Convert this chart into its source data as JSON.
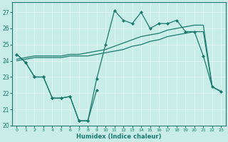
{
  "xlabel": "Humidex (Indice chaleur)",
  "bg_color": "#c8ece8",
  "grid_color": "#e8f8f5",
  "line_color": "#1a7a6e",
  "xlim": [
    -0.5,
    23.5
  ],
  "ylim": [
    20,
    27.6
  ],
  "yticks": [
    20,
    21,
    22,
    23,
    24,
    25,
    26,
    27
  ],
  "xticks": [
    0,
    1,
    2,
    3,
    4,
    5,
    6,
    7,
    8,
    9,
    10,
    11,
    12,
    13,
    14,
    15,
    16,
    17,
    18,
    19,
    20,
    21,
    22,
    23
  ],
  "line_jagged_x": [
    0,
    1,
    2,
    3,
    4,
    5,
    6,
    7,
    8,
    9,
    10,
    11,
    12,
    13,
    14,
    15,
    16,
    17,
    18,
    19,
    20,
    21,
    22,
    23
  ],
  "line_jagged_y": [
    24.4,
    23.9,
    23.0,
    23.0,
    21.7,
    21.7,
    21.8,
    20.3,
    20.3,
    22.9,
    25.0,
    27.1,
    26.5,
    26.3,
    27.0,
    26.0,
    26.3,
    26.3,
    26.5,
    25.8,
    25.8,
    24.3,
    22.4,
    22.1
  ],
  "line_lower_x": [
    0,
    1,
    2,
    3,
    4,
    5,
    6,
    7,
    8,
    9,
    10,
    11,
    12,
    13,
    14,
    15,
    16,
    17,
    18,
    19,
    20,
    21,
    22,
    23
  ],
  "line_lower_y": [
    24.4,
    23.9,
    23.0,
    23.0,
    21.7,
    21.7,
    21.8,
    20.3,
    20.3,
    22.2,
    null,
    null,
    null,
    null,
    null,
    null,
    null,
    null,
    null,
    null,
    null,
    null,
    null,
    null
  ],
  "line_trend1_x": [
    0,
    1,
    2,
    3,
    4,
    5,
    6,
    7,
    8,
    9,
    10,
    11,
    12,
    13,
    14,
    15,
    16,
    17,
    18,
    19,
    20,
    21,
    22,
    23
  ],
  "line_trend1_y": [
    24.0,
    24.1,
    24.2,
    24.2,
    24.2,
    24.2,
    24.3,
    24.3,
    24.3,
    24.4,
    24.5,
    24.6,
    24.7,
    24.9,
    25.0,
    25.2,
    25.3,
    25.5,
    25.6,
    25.7,
    25.8,
    25.8,
    22.4,
    22.1
  ],
  "line_trend2_x": [
    0,
    1,
    2,
    3,
    4,
    5,
    6,
    7,
    8,
    9,
    10,
    11,
    12,
    13,
    14,
    15,
    16,
    17,
    18,
    19,
    20,
    21,
    22,
    23
  ],
  "line_trend2_y": [
    24.1,
    24.2,
    24.3,
    24.3,
    24.3,
    24.3,
    24.4,
    24.4,
    24.5,
    24.6,
    24.7,
    24.9,
    25.1,
    25.3,
    25.5,
    25.6,
    25.7,
    25.9,
    26.0,
    26.1,
    26.2,
    26.2,
    22.4,
    22.1
  ]
}
